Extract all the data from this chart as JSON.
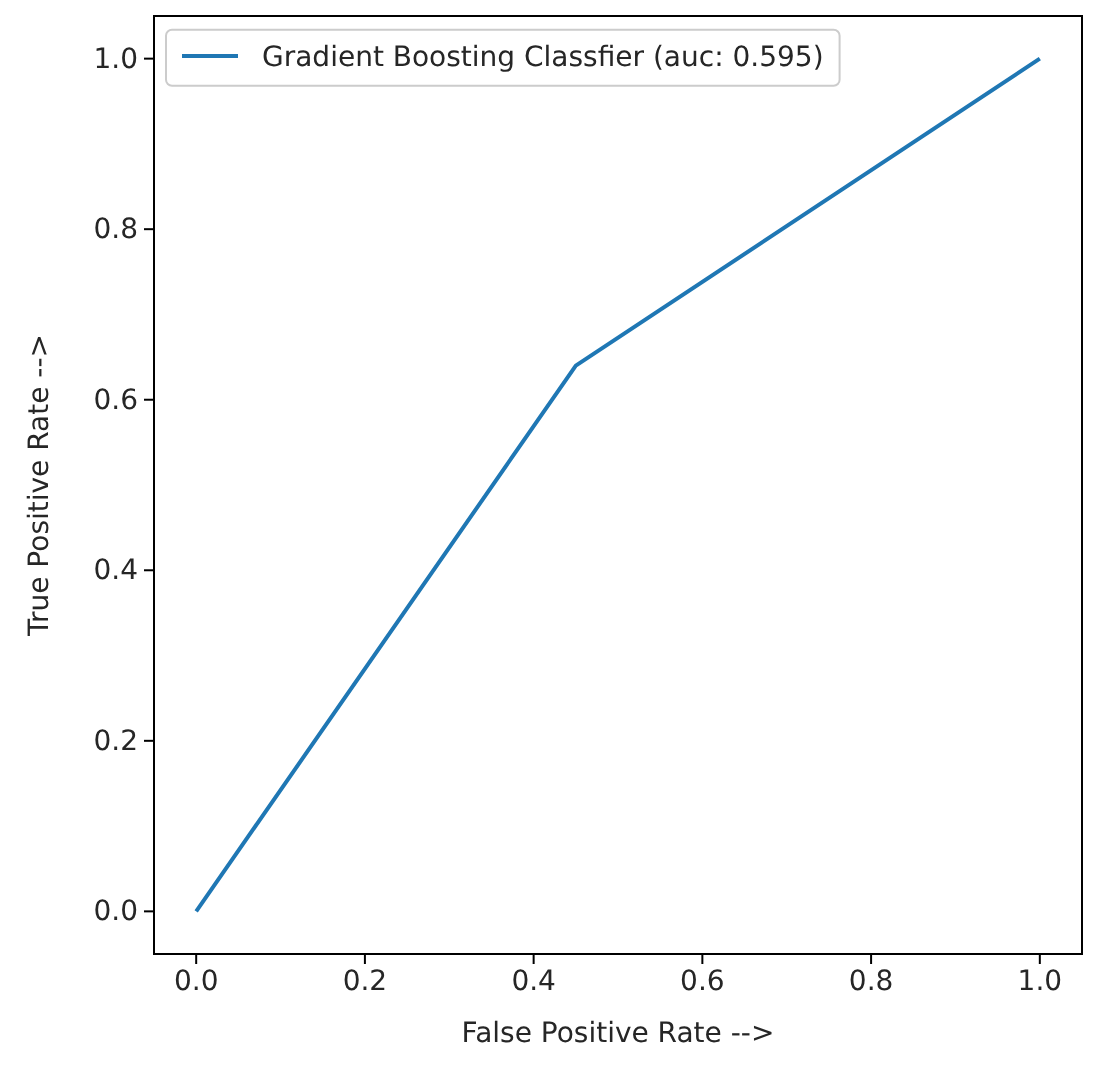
{
  "chart_data": {
    "type": "line",
    "xlabel": "False Positive Rate -->",
    "ylabel": "True Positive Rate -->",
    "x": [
      0,
      0.45,
      1
    ],
    "series": [
      {
        "name": "Gradient Boosting Classfier (auc: 0.595)",
        "color": "#1f77b4",
        "values": [
          0,
          0.64,
          1
        ]
      }
    ],
    "xlim": [
      -0.05,
      1.05
    ],
    "ylim": [
      -0.05,
      1.05
    ],
    "xticks": [
      {
        "value": 0,
        "label": "0.0"
      },
      {
        "value": 0.2,
        "label": "0.2"
      },
      {
        "value": 0.4,
        "label": "0.4"
      },
      {
        "value": 0.6,
        "label": "0.6"
      },
      {
        "value": 0.8,
        "label": "0.8"
      },
      {
        "value": 1,
        "label": "1.0"
      }
    ],
    "yticks": [
      {
        "value": 0,
        "label": "0.0"
      },
      {
        "value": 0.2,
        "label": "0.2"
      },
      {
        "value": 0.4,
        "label": "0.4"
      },
      {
        "value": 0.6,
        "label": "0.6"
      },
      {
        "value": 0.8,
        "label": "0.8"
      },
      {
        "value": 1,
        "label": "1.0"
      }
    ],
    "legend": "top left",
    "grid": false,
    "marker": "none",
    "line_style": "solid"
  }
}
